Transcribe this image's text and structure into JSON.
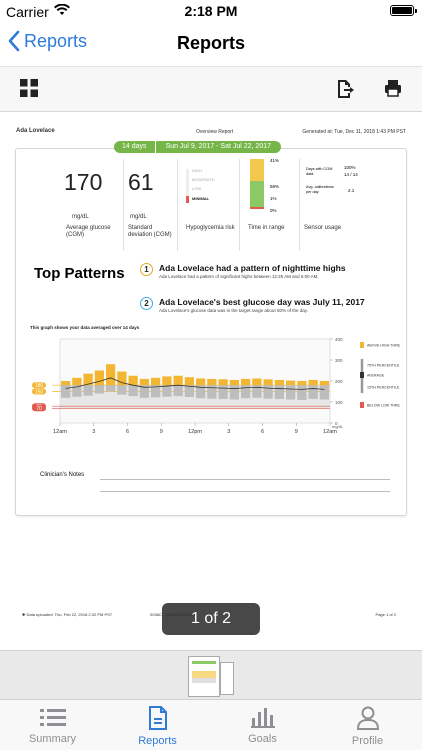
{
  "status": {
    "carrier": "Carrier",
    "time": "2:18 PM"
  },
  "nav": {
    "back_label": "Reports",
    "title": "Reports"
  },
  "toolbar": {
    "grid_icon": "grid-icon",
    "export_icon": "export-icon",
    "print_icon": "print-icon"
  },
  "report": {
    "patient_name": "Ada Lovelace",
    "report_title": "Overview Report",
    "generated": "Generated at: Tue, Dec 11, 2018 1:43 PM PST",
    "days_label": "14 days",
    "date_range": "Sun Jul 9, 2017 - Sat Jul 22, 2017",
    "avg_glucose": {
      "value": "170",
      "unit": "mg/dL",
      "label": "Average glucose (CGM)"
    },
    "std_dev": {
      "value": "61",
      "unit": "mg/dL",
      "label": "Standard deviation (CGM)"
    },
    "hypo": {
      "label": "Hypoglycemia risk",
      "levels": [
        "HIGH",
        "MODERATE",
        "LOW",
        "MINIMAL"
      ],
      "selected": "MINIMAL"
    },
    "time_in_range": {
      "label": "Time in range",
      "pcts": [
        "41%",
        "58%",
        "1%",
        "0%"
      ]
    },
    "sensor": {
      "label": "Sensor usage",
      "days_with_cgm_label": "Days with CGM data",
      "days_with_cgm_value": "100%",
      "days_with_cgm_count": "14 / 14",
      "avg_cal_label": "Avg. calibrations per day",
      "avg_cal_value": "2.1"
    },
    "top_patterns_title": "Top Patterns",
    "patterns": [
      {
        "num": "1",
        "title": "Ada Lovelace had a pattern of nighttime highs",
        "sub": "Ada Lovelace had a pattern of significant highs between 12:25 AM and 6:00 AM."
      },
      {
        "num": "2",
        "title": "Ada Lovelace's best glucose day was July 11, 2017",
        "sub": "Ada Lovelace's glucose data was in the target range about 80% of the day."
      }
    ],
    "graph_note": "This graph shows your data averaged over 14 days",
    "clinician_notes": "Clinician's Notes",
    "footer_left": "✱ Data uploaded: Thu, Feb 22, 2018 2:32 PM PST",
    "footer_mid": "0038C... DOM 2018-09-26",
    "footer_right": "Page 1 of 2"
  },
  "chart_data": {
    "type": "area",
    "x_ticks": [
      "12am",
      "3",
      "6",
      "9",
      "12pm",
      "3",
      "6",
      "9",
      "12am"
    ],
    "y_ticks": [
      "400",
      "300",
      "200",
      "100",
      "0"
    ],
    "y_unit": "mg/dL",
    "ylim": [
      0,
      400
    ],
    "threshold_labels": [
      "180",
      "150",
      "80",
      "70"
    ],
    "legend": [
      "ABOVE HIGH THRESHOLD",
      "75TH PERCENTILE",
      "AVERAGE",
      "15TH PERCENTILE",
      "BELOW LOW THRESHOLD"
    ],
    "series": [
      {
        "name": "75TH PERCENTILE",
        "values": [
          200,
          215,
          235,
          250,
          280,
          245,
          225,
          210,
          215,
          222,
          225,
          218,
          212,
          210,
          208,
          205,
          210,
          212,
          208,
          205,
          202,
          200,
          205,
          200
        ]
      },
      {
        "name": "AVERAGE",
        "values": [
          165,
          172,
          185,
          198,
          215,
          192,
          180,
          170,
          172,
          176,
          180,
          175,
          170,
          168,
          166,
          164,
          168,
          170,
          166,
          164,
          162,
          160,
          164,
          160
        ]
      },
      {
        "name": "15TH PERCENTILE",
        "values": [
          120,
          125,
          130,
          140,
          150,
          135,
          128,
          120,
          122,
          125,
          128,
          124,
          118,
          116,
          114,
          112,
          118,
          120,
          116,
          114,
          112,
          110,
          115,
          112
        ]
      }
    ]
  },
  "pager": {
    "label": "1 of 2"
  },
  "tabs": [
    {
      "label": "Summary",
      "icon": "list-icon"
    },
    {
      "label": "Reports",
      "icon": "document-icon"
    },
    {
      "label": "Goals",
      "icon": "bar-chart-icon"
    },
    {
      "label": "Profile",
      "icon": "person-icon"
    }
  ],
  "colors": {
    "accent": "#2f7bd8",
    "green": "#76b548",
    "yellow": "#f2b632",
    "red": "#e05a4e"
  }
}
